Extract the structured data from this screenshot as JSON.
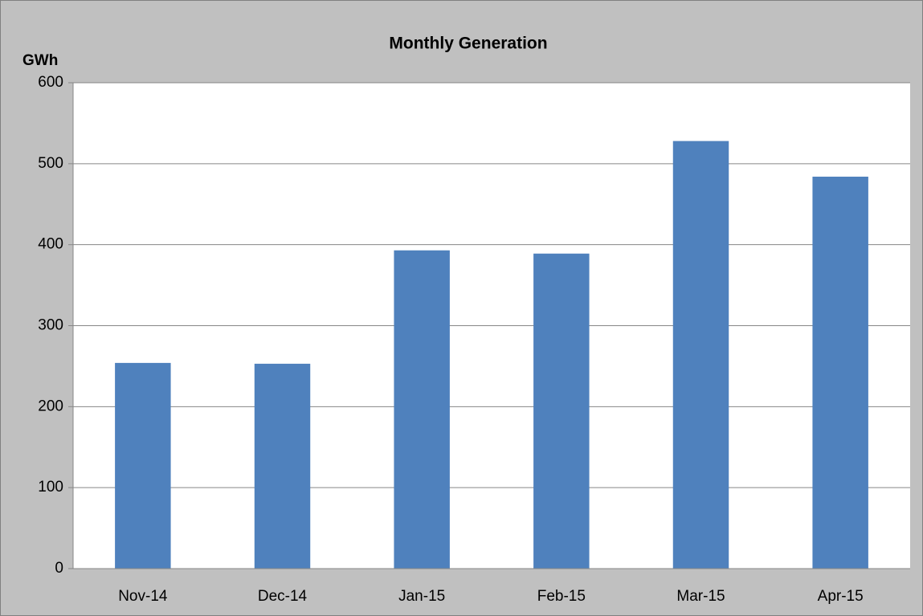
{
  "chart_data": {
    "type": "bar",
    "title": "Monthly Generation",
    "y_label": "GWh",
    "categories": [
      "Nov-14",
      "Dec-14",
      "Jan-15",
      "Feb-15",
      "Mar-15",
      "Apr-15"
    ],
    "values": [
      254,
      253,
      393,
      389,
      528,
      484
    ],
    "color": "#4f81bd",
    "ylim": [
      0,
      600
    ],
    "yticks": [
      0,
      100,
      200,
      300,
      400,
      500,
      600
    ],
    "grid": true
  }
}
